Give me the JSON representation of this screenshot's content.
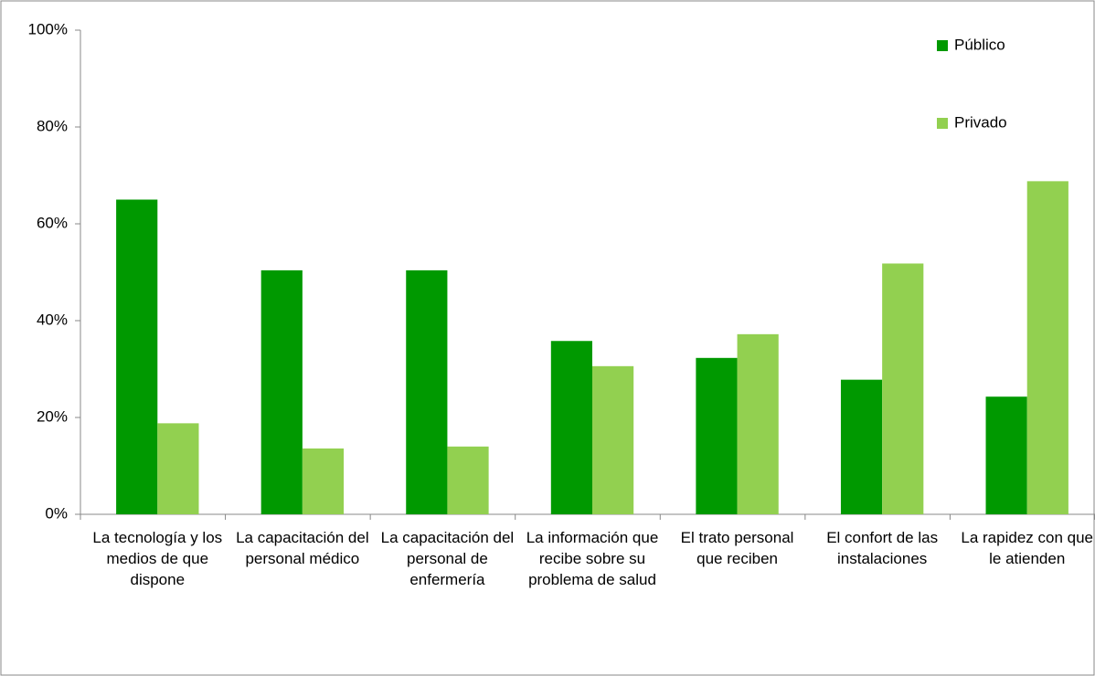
{
  "chart_data": {
    "type": "bar",
    "categories": [
      "La tecnología y los medios de que dispone",
      "La capacitación del personal médico",
      "La capacitación del personal de enfermería",
      "La información que recibe sobre su problema de salud",
      "El trato personal que reciben",
      "El confort de las instalaciones",
      "La rapidez con que le atienden"
    ],
    "series": [
      {
        "name": "Público",
        "color": "#009900",
        "values": [
          65.0,
          50.4,
          50.4,
          35.8,
          32.3,
          27.8,
          24.3
        ]
      },
      {
        "name": "Privado",
        "color": "#92d050",
        "values": [
          18.8,
          13.6,
          14.0,
          30.6,
          37.2,
          51.8,
          68.8
        ]
      }
    ],
    "ylim": [
      0,
      100
    ],
    "yticks": [
      {
        "value": 0,
        "label": "0%"
      },
      {
        "value": 20,
        "label": "20%"
      },
      {
        "value": 40,
        "label": "40%"
      },
      {
        "value": 60,
        "label": "60%"
      },
      {
        "value": 80,
        "label": "80%"
      },
      {
        "value": 100,
        "label": "100%"
      }
    ],
    "grid": false,
    "legend": "top-right"
  }
}
